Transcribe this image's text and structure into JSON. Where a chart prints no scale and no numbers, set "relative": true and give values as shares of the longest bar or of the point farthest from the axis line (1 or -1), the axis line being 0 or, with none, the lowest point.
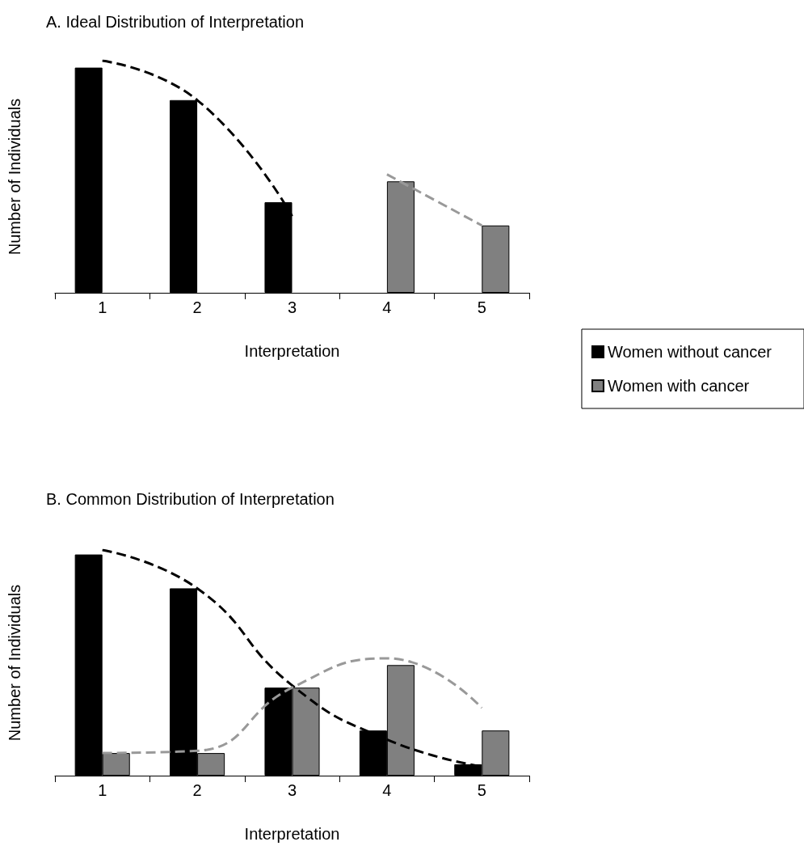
{
  "chart_data": [
    {
      "type": "bar",
      "title": "A. Ideal Distribution of Interpretation",
      "xlabel": "Interpretation",
      "ylabel": "Number of Individuals",
      "categories": [
        "1",
        "2",
        "3",
        "4",
        "5"
      ],
      "relative": true,
      "legend": "bottom right",
      "series": [
        {
          "name": "Women without cancer",
          "color": "#000000",
          "values": [
            0.97,
            0.83,
            0.39,
            null,
            null
          ]
        },
        {
          "name": "Women with cancer",
          "color": "#808080",
          "values": [
            null,
            null,
            null,
            0.48,
            0.29
          ]
        },
        {
          "type": "line",
          "color": "#000000",
          "line_style": "dashed",
          "marker": "none",
          "values": [
            1,
            0.83,
            0.33,
            null,
            null
          ]
        },
        {
          "type": "line",
          "color": "#999999",
          "line_style": "dashed",
          "marker": "none",
          "values": [
            null,
            null,
            null,
            0.51,
            0.29
          ]
        }
      ]
    },
    {
      "type": "bar",
      "title": "B. Common Distribution of Interpretation",
      "xlabel": "Interpretation",
      "ylabel": "Number of Individuals",
      "categories": [
        "1",
        "2",
        "3",
        "4",
        "5"
      ],
      "relative": true,
      "series": [
        {
          "color": "#000000",
          "values": [
            0.98,
            0.83,
            0.39,
            0.2,
            0.05
          ]
        },
        {
          "color": "#808080",
          "values": [
            0.1,
            0.1,
            0.39,
            0.49,
            0.2
          ]
        },
        {
          "type": "line",
          "color": "#000000",
          "line_style": "dashed",
          "marker": "none",
          "values": [
            1,
            0.83,
            0.4,
            0.16,
            0.04
          ]
        },
        {
          "type": "line",
          "color": "#999999",
          "line_style": "dashed",
          "marker": "none",
          "values": [
            0.1,
            0.11,
            0.39,
            0.52,
            0.3
          ]
        }
      ]
    }
  ]
}
